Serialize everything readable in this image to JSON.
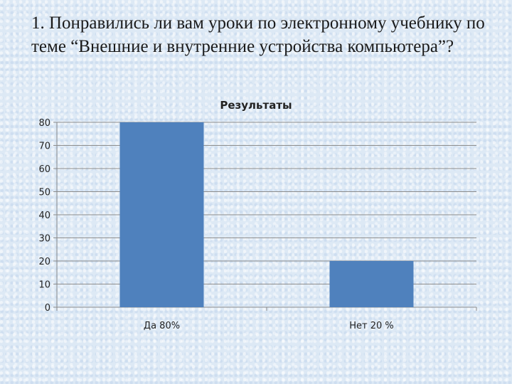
{
  "slide": {
    "title": "1. Понравились ли вам уроки по электронному учебнику по теме “Внешние и внутренние устройства компьютера”?"
  },
  "colors": {
    "bar": "#4f81bd",
    "grid": "#8c8c8c",
    "text": "#222222"
  },
  "chart_data": {
    "type": "bar",
    "title": "Результаты",
    "categories": [
      "Да 80%",
      "Нет 20 %"
    ],
    "values": [
      80,
      20
    ],
    "xlabel": "",
    "ylabel": "",
    "ylim": [
      0,
      80
    ],
    "yticks": [
      0,
      10,
      20,
      30,
      40,
      50,
      60,
      70,
      80
    ],
    "grid": true,
    "legend": "none"
  }
}
